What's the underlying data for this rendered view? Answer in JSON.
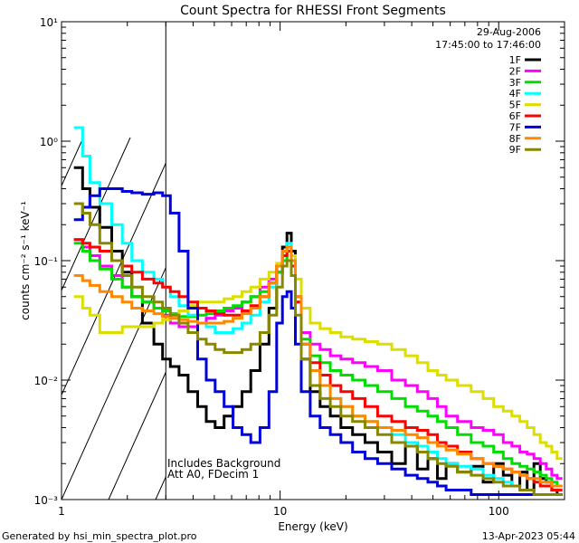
{
  "chart_data": {
    "type": "line",
    "title": "Count Spectra for RHESSI Front Segments",
    "xlabel": "Energy (keV)",
    "ylabel": "counts cm⁻² s⁻¹ keV⁻¹",
    "xscale": "log",
    "yscale": "log",
    "xlim": [
      1,
      200
    ],
    "ylim": [
      0.001,
      10
    ],
    "x_ticks": [
      {
        "value": 1,
        "label": "1"
      },
      {
        "value": 10,
        "label": "10"
      },
      {
        "value": 100,
        "label": "100"
      }
    ],
    "y_ticks": [
      {
        "value": 10,
        "label": "10¹"
      },
      {
        "value": 1,
        "label": "10⁰"
      },
      {
        "value": 0.1,
        "label": "10⁻¹"
      },
      {
        "value": 0.01,
        "label": "10⁻²"
      },
      {
        "value": 0.001,
        "label": "10⁻³"
      }
    ],
    "hatched_region_x": [
      1,
      3
    ],
    "annotation_date": "29-Aug-2006",
    "annotation_time": "17:45:00 to 17:46:00",
    "note_line1": "Includes Background",
    "note_line2": "Att A0, FDecim 1",
    "footer_left": "Generated by hsi_min_spectra_plot.pro",
    "footer_right": "13-Apr-2023 05:44",
    "legend_position": "top-right",
    "series": [
      {
        "name": "1F",
        "color": "#000000",
        "x": [
          1.2,
          1.3,
          1.4,
          1.6,
          1.8,
          2.0,
          2.2,
          2.5,
          2.8,
          3.0,
          3.3,
          3.6,
          4.0,
          4.4,
          4.8,
          5.3,
          5.8,
          6.4,
          7.0,
          7.7,
          8.5,
          9.3,
          10.0,
          10.5,
          11.0,
          11.5,
          12.0,
          13.0,
          14.5,
          16,
          18,
          20,
          23,
          26,
          30,
          35,
          40,
          45,
          50,
          55,
          60,
          70,
          80,
          90,
          100,
          110,
          120,
          130,
          140,
          150,
          160,
          170,
          180,
          190
        ],
        "y": [
          0.6,
          0.4,
          0.28,
          0.19,
          0.12,
          0.08,
          0.05,
          0.03,
          0.02,
          0.015,
          0.013,
          0.011,
          0.008,
          0.006,
          0.0045,
          0.004,
          0.005,
          0.006,
          0.008,
          0.012,
          0.02,
          0.04,
          0.08,
          0.13,
          0.17,
          0.12,
          0.05,
          0.015,
          0.008,
          0.006,
          0.005,
          0.004,
          0.0035,
          0.003,
          0.0025,
          0.002,
          0.003,
          0.0018,
          0.0022,
          0.0015,
          0.002,
          0.0017,
          0.0019,
          0.0014,
          0.002,
          0.0016,
          0.0013,
          0.0017,
          0.0012,
          0.002,
          0.0015,
          0.0014,
          0.0012,
          0.0011
        ]
      },
      {
        "name": "2F",
        "color": "#ff00ff",
        "x": [
          1.2,
          1.3,
          1.4,
          1.6,
          1.8,
          2.0,
          2.2,
          2.5,
          2.8,
          3.0,
          3.3,
          3.6,
          4.0,
          4.4,
          4.8,
          5.3,
          5.8,
          6.4,
          7.0,
          7.7,
          8.5,
          9.3,
          10.0,
          10.5,
          11.0,
          11.5,
          12.0,
          13.0,
          14.5,
          16,
          18,
          20,
          23,
          26,
          30,
          35,
          40,
          45,
          50,
          55,
          60,
          70,
          80,
          90,
          100,
          110,
          120,
          130,
          140,
          150,
          160,
          170,
          180,
          190
        ],
        "y": [
          0.15,
          0.13,
          0.11,
          0.09,
          0.075,
          0.06,
          0.05,
          0.045,
          0.04,
          0.035,
          0.03,
          0.028,
          0.028,
          0.03,
          0.033,
          0.035,
          0.038,
          0.04,
          0.045,
          0.05,
          0.06,
          0.07,
          0.09,
          0.12,
          0.13,
          0.1,
          0.05,
          0.025,
          0.02,
          0.018,
          0.016,
          0.015,
          0.014,
          0.013,
          0.012,
          0.01,
          0.009,
          0.008,
          0.007,
          0.006,
          0.005,
          0.0045,
          0.004,
          0.0038,
          0.0035,
          0.003,
          0.0028,
          0.0025,
          0.0024,
          0.0022,
          0.002,
          0.0018,
          0.0016,
          0.0015
        ]
      },
      {
        "name": "3F",
        "color": "#00dd00",
        "x": [
          1.2,
          1.3,
          1.4,
          1.6,
          1.8,
          2.0,
          2.2,
          2.5,
          2.8,
          3.0,
          3.3,
          3.6,
          4.0,
          4.4,
          4.8,
          5.3,
          5.8,
          6.4,
          7.0,
          7.7,
          8.5,
          9.3,
          10.0,
          10.5,
          11.0,
          11.5,
          12.0,
          13.0,
          14.5,
          16,
          18,
          20,
          23,
          26,
          30,
          35,
          40,
          45,
          50,
          55,
          60,
          70,
          80,
          90,
          100,
          110,
          120,
          130,
          140,
          150,
          160,
          170,
          180,
          190
        ],
        "y": [
          0.14,
          0.12,
          0.1,
          0.085,
          0.07,
          0.06,
          0.05,
          0.045,
          0.04,
          0.038,
          0.036,
          0.034,
          0.034,
          0.035,
          0.036,
          0.038,
          0.04,
          0.042,
          0.045,
          0.05,
          0.055,
          0.065,
          0.08,
          0.1,
          0.12,
          0.09,
          0.045,
          0.022,
          0.016,
          0.014,
          0.012,
          0.011,
          0.01,
          0.009,
          0.008,
          0.007,
          0.006,
          0.0055,
          0.005,
          0.0045,
          0.004,
          0.0035,
          0.003,
          0.0028,
          0.0025,
          0.0022,
          0.002,
          0.0019,
          0.0018,
          0.0017,
          0.0016,
          0.0015,
          0.0014,
          0.0013
        ]
      },
      {
        "name": "4F",
        "color": "#00ffff",
        "x": [
          1.2,
          1.3,
          1.4,
          1.6,
          1.8,
          2.0,
          2.2,
          2.5,
          2.8,
          3.0,
          3.3,
          3.6,
          4.0,
          4.4,
          4.8,
          5.3,
          5.8,
          6.4,
          7.0,
          7.7,
          8.5,
          9.3,
          10.0,
          10.5,
          11.0,
          11.5,
          12.0,
          13.0,
          14.5,
          16,
          18,
          20,
          23,
          26,
          30,
          35,
          40,
          45,
          50,
          55,
          60,
          70,
          80,
          90,
          100,
          110,
          120,
          130,
          140,
          150,
          160,
          170,
          180,
          190
        ],
        "y": [
          1.3,
          0.75,
          0.45,
          0.3,
          0.2,
          0.14,
          0.1,
          0.08,
          0.07,
          0.06,
          0.05,
          0.042,
          0.035,
          0.03,
          0.028,
          0.025,
          0.025,
          0.027,
          0.03,
          0.035,
          0.045,
          0.06,
          0.09,
          0.12,
          0.14,
          0.1,
          0.05,
          0.02,
          0.012,
          0.009,
          0.007,
          0.006,
          0.005,
          0.0045,
          0.004,
          0.0035,
          0.003,
          0.0028,
          0.0025,
          0.0022,
          0.002,
          0.0019,
          0.0018,
          0.0016,
          0.0015,
          0.0014,
          0.0013,
          0.0012,
          0.0012,
          0.0011,
          0.0011,
          0.0011,
          0.0011,
          0.0011
        ]
      },
      {
        "name": "5F",
        "color": "#dddd00",
        "x": [
          1.2,
          1.3,
          1.4,
          1.6,
          1.8,
          2.0,
          2.2,
          2.5,
          2.8,
          3.0,
          3.3,
          3.6,
          4.0,
          4.4,
          4.8,
          5.3,
          5.8,
          6.4,
          7.0,
          7.7,
          8.5,
          9.3,
          10.0,
          10.5,
          11.0,
          11.5,
          12.0,
          13.0,
          14.5,
          16,
          18,
          20,
          23,
          26,
          30,
          35,
          40,
          45,
          50,
          55,
          60,
          70,
          80,
          90,
          100,
          110,
          120,
          130,
          140,
          150,
          160,
          170,
          180,
          190
        ],
        "y": [
          0.05,
          0.04,
          0.035,
          0.025,
          0.025,
          0.028,
          0.028,
          0.028,
          0.03,
          0.032,
          0.035,
          0.038,
          0.042,
          0.045,
          0.045,
          0.045,
          0.048,
          0.05,
          0.055,
          0.06,
          0.07,
          0.08,
          0.095,
          0.11,
          0.12,
          0.11,
          0.07,
          0.04,
          0.03,
          0.027,
          0.025,
          0.023,
          0.022,
          0.021,
          0.02,
          0.018,
          0.016,
          0.014,
          0.012,
          0.011,
          0.01,
          0.009,
          0.008,
          0.007,
          0.006,
          0.0055,
          0.005,
          0.0045,
          0.004,
          0.0035,
          0.003,
          0.0028,
          0.0025,
          0.0022
        ]
      },
      {
        "name": "6F",
        "color": "#ff0000",
        "x": [
          1.2,
          1.3,
          1.4,
          1.6,
          1.8,
          2.0,
          2.2,
          2.5,
          2.8,
          3.0,
          3.3,
          3.6,
          4.0,
          4.4,
          4.8,
          5.3,
          5.8,
          6.4,
          7.0,
          7.7,
          8.5,
          9.3,
          10.0,
          10.5,
          11.0,
          11.5,
          12.0,
          13.0,
          14.5,
          16,
          18,
          20,
          23,
          26,
          30,
          35,
          40,
          45,
          50,
          55,
          60,
          70,
          80,
          90,
          100,
          110,
          120,
          130,
          140,
          150,
          160,
          170,
          180,
          190
        ],
        "y": [
          0.15,
          0.14,
          0.13,
          0.12,
          0.1,
          0.09,
          0.08,
          0.07,
          0.065,
          0.06,
          0.055,
          0.05,
          0.045,
          0.04,
          0.038,
          0.036,
          0.035,
          0.035,
          0.038,
          0.042,
          0.05,
          0.065,
          0.09,
          0.11,
          0.12,
          0.09,
          0.045,
          0.02,
          0.014,
          0.011,
          0.009,
          0.008,
          0.007,
          0.006,
          0.005,
          0.0045,
          0.004,
          0.0038,
          0.0035,
          0.003,
          0.0028,
          0.0025,
          0.0022,
          0.002,
          0.0019,
          0.0018,
          0.0017,
          0.0016,
          0.0015,
          0.0014,
          0.0013,
          0.0013,
          0.0012,
          0.0012
        ]
      },
      {
        "name": "7F",
        "color": "#0000dd",
        "x": [
          1.2,
          1.3,
          1.4,
          1.6,
          1.8,
          2.0,
          2.2,
          2.5,
          2.8,
          3.0,
          3.3,
          3.6,
          4.0,
          4.4,
          4.8,
          5.3,
          5.8,
          6.4,
          7.0,
          7.7,
          8.5,
          9.3,
          10.0,
          10.5,
          11.0,
          11.5,
          12.0,
          13.0,
          14.5,
          16,
          18,
          20,
          23,
          26,
          30,
          35,
          40,
          45,
          50,
          55,
          60,
          70,
          80,
          90,
          100,
          110,
          120,
          130,
          140,
          150,
          160,
          170,
          180,
          190
        ],
        "y": [
          0.22,
          0.28,
          0.35,
          0.4,
          0.4,
          0.38,
          0.37,
          0.36,
          0.37,
          0.35,
          0.25,
          0.12,
          0.04,
          0.015,
          0.01,
          0.008,
          0.006,
          0.004,
          0.0035,
          0.003,
          0.004,
          0.008,
          0.03,
          0.05,
          0.055,
          0.04,
          0.02,
          0.008,
          0.005,
          0.004,
          0.0035,
          0.003,
          0.0025,
          0.0022,
          0.002,
          0.0018,
          0.0016,
          0.0015,
          0.0014,
          0.0013,
          0.0012,
          0.0012,
          0.0011,
          0.0011,
          0.0011,
          0.0011,
          0.0011,
          0.0011,
          0.0011,
          0.0011,
          0.0011,
          0.0011,
          0.0011,
          0.0011
        ]
      },
      {
        "name": "8F",
        "color": "#ff8800",
        "x": [
          1.2,
          1.3,
          1.4,
          1.6,
          1.8,
          2.0,
          2.2,
          2.5,
          2.8,
          3.0,
          3.3,
          3.6,
          4.0,
          4.4,
          4.8,
          5.3,
          5.8,
          6.4,
          7.0,
          7.7,
          8.5,
          9.3,
          10.0,
          10.5,
          11.0,
          11.5,
          12.0,
          13.0,
          14.5,
          16,
          18,
          20,
          23,
          26,
          30,
          35,
          40,
          45,
          50,
          55,
          60,
          70,
          80,
          90,
          100,
          110,
          120,
          130,
          140,
          150,
          160,
          170,
          180,
          190
        ],
        "y": [
          0.075,
          0.068,
          0.062,
          0.055,
          0.05,
          0.045,
          0.04,
          0.038,
          0.036,
          0.034,
          0.033,
          0.032,
          0.031,
          0.03,
          0.03,
          0.03,
          0.031,
          0.033,
          0.036,
          0.04,
          0.05,
          0.065,
          0.09,
          0.12,
          0.13,
          0.1,
          0.05,
          0.02,
          0.012,
          0.009,
          0.007,
          0.006,
          0.005,
          0.0045,
          0.004,
          0.0038,
          0.0035,
          0.0033,
          0.003,
          0.0028,
          0.0026,
          0.0024,
          0.0022,
          0.002,
          0.0019,
          0.0018,
          0.0017,
          0.0016,
          0.0015,
          0.0015,
          0.0014,
          0.0014,
          0.0013,
          0.0013
        ]
      },
      {
        "name": "9F",
        "color": "#888800",
        "x": [
          1.2,
          1.3,
          1.4,
          1.6,
          1.8,
          2.0,
          2.2,
          2.5,
          2.8,
          3.0,
          3.3,
          3.6,
          4.0,
          4.4,
          4.8,
          5.3,
          5.8,
          6.4,
          7.0,
          7.7,
          8.5,
          9.3,
          10.0,
          10.5,
          11.0,
          11.5,
          12.0,
          13.0,
          14.5,
          16,
          18,
          20,
          23,
          26,
          30,
          35,
          40,
          45,
          50,
          55,
          60,
          70,
          80,
          90,
          100,
          110,
          120,
          130,
          140,
          150,
          160,
          170,
          180,
          190
        ],
        "y": [
          0.3,
          0.25,
          0.2,
          0.14,
          0.1,
          0.075,
          0.06,
          0.05,
          0.045,
          0.04,
          0.035,
          0.03,
          0.025,
          0.022,
          0.02,
          0.018,
          0.017,
          0.017,
          0.018,
          0.02,
          0.025,
          0.035,
          0.06,
          0.09,
          0.1,
          0.075,
          0.035,
          0.015,
          0.009,
          0.007,
          0.006,
          0.005,
          0.0045,
          0.004,
          0.0035,
          0.003,
          0.0028,
          0.0025,
          0.0022,
          0.002,
          0.0019,
          0.0017,
          0.0016,
          0.0015,
          0.0014,
          0.0013,
          0.0013,
          0.0012,
          0.0012,
          0.0011,
          0.0011,
          0.0011,
          0.0011,
          0.0011
        ]
      }
    ]
  }
}
